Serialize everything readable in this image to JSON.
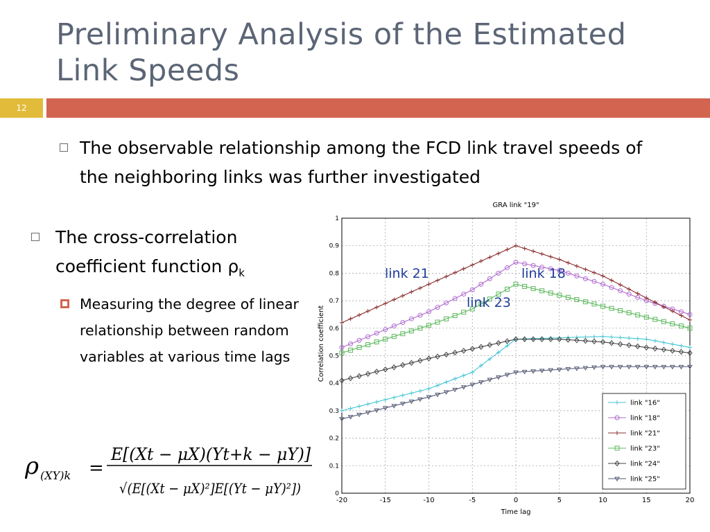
{
  "slide": {
    "title": "Preliminary Analysis of the Estimated Link Speeds",
    "number": "12"
  },
  "bullets": {
    "b1": "The observable relationship among the FCD link travel speeds of the neighboring links was further investigated",
    "b2_text": "The cross-correlation coefficient function ρ",
    "b2_sub": "k",
    "b3": "Measuring the degree of linear relationship between random variables at various time lags"
  },
  "formula": {
    "lhs": "ρ",
    "lhs_sub": "(XY)k",
    "equals": "=",
    "numerator": "E[(Xt − μX)(Yt+k − μY)]",
    "denominator": "√(E[(Xt − μX)²]E[(Yt − μY)²])"
  },
  "annotations": {
    "link21": "link 21",
    "link18": "link 18",
    "link23": "link 23"
  },
  "chart_data": {
    "type": "line",
    "title": "GRA link \"19\"",
    "xlabel": "Time lag",
    "ylabel": "Correlation coefficient",
    "xlim": [
      -20,
      20
    ],
    "ylim": [
      0,
      1
    ],
    "xticks": [
      -20,
      -15,
      -10,
      -5,
      0,
      5,
      10,
      15,
      20
    ],
    "yticks": [
      0,
      0.1,
      0.2,
      0.3,
      0.4,
      0.5,
      0.6,
      0.7,
      0.8,
      0.9,
      1
    ],
    "grid": true,
    "legend_position": "bottom-right",
    "series": [
      {
        "name": "link \"16\"",
        "color": "#45c6d4",
        "marker": "plus",
        "x": [
          -20,
          -10,
          -5,
          0,
          10,
          15,
          20
        ],
        "y": [
          0.3,
          0.38,
          0.44,
          0.56,
          0.57,
          0.56,
          0.53
        ]
      },
      {
        "name": "link \"18\"",
        "color": "#b06ad0",
        "marker": "circle",
        "x": [
          -20,
          -10,
          -5,
          0,
          5,
          10,
          15,
          20
        ],
        "y": [
          0.53,
          0.66,
          0.74,
          0.84,
          0.81,
          0.76,
          0.7,
          0.65
        ]
      },
      {
        "name": "link \"21\"",
        "color": "#8a3030",
        "marker": "plus",
        "x": [
          -20,
          -10,
          0,
          5,
          10,
          15,
          20
        ],
        "y": [
          0.62,
          0.76,
          0.9,
          0.85,
          0.79,
          0.71,
          0.63
        ]
      },
      {
        "name": "link \"23\"",
        "color": "#5cb85c",
        "marker": "square",
        "x": [
          -20,
          -10,
          -5,
          0,
          5,
          10,
          15,
          20
        ],
        "y": [
          0.51,
          0.61,
          0.67,
          0.76,
          0.72,
          0.68,
          0.64,
          0.6
        ]
      },
      {
        "name": "link \"24\"",
        "color": "#444444",
        "marker": "diamond",
        "x": [
          -20,
          -10,
          0,
          5,
          10,
          15,
          20
        ],
        "y": [
          0.41,
          0.49,
          0.56,
          0.56,
          0.55,
          0.53,
          0.51
        ]
      },
      {
        "name": "link \"25\"",
        "color": "#555a75",
        "marker": "triangle",
        "x": [
          -20,
          -10,
          0,
          10,
          20
        ],
        "y": [
          0.27,
          0.35,
          0.44,
          0.46,
          0.46
        ]
      }
    ]
  }
}
